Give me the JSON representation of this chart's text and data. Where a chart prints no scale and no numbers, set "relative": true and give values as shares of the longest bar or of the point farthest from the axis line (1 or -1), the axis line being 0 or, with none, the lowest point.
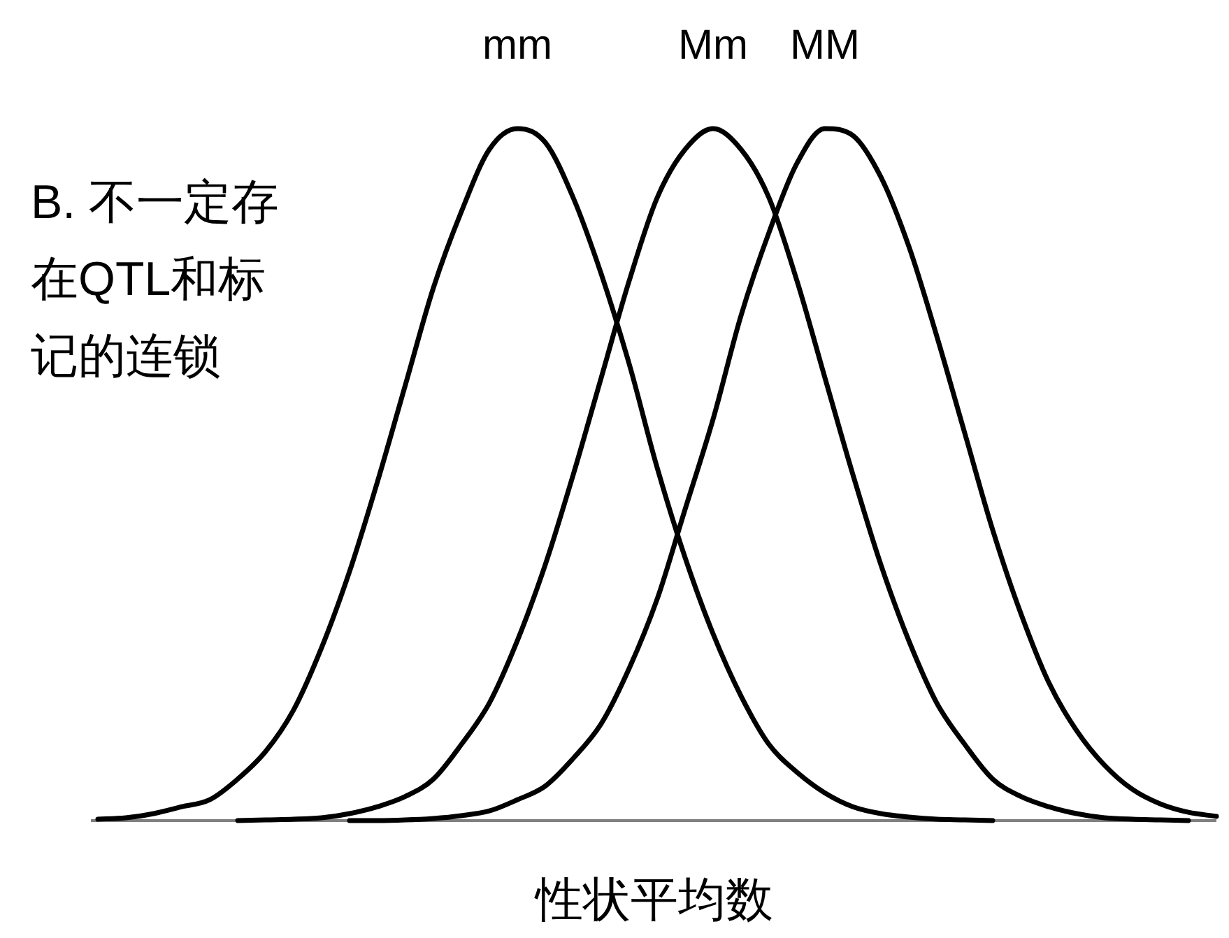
{
  "chart_data": {
    "type": "line",
    "relative": true,
    "xlabel": "性状平均数",
    "annotations": [
      "B. 不一定存在QTL和标记的连锁"
    ],
    "legend": false,
    "marker": "none",
    "line_style": "solid",
    "categories": [
      null,
      null,
      null,
      null,
      null,
      null,
      null,
      null,
      null,
      null,
      null,
      null,
      null,
      null,
      null,
      null,
      null,
      null,
      null,
      null,
      null,
      null,
      null,
      null,
      null,
      null,
      null,
      null,
      null,
      null,
      null,
      null,
      null,
      null,
      null,
      null,
      null,
      null,
      null,
      null,
      null
    ],
    "series": [
      {
        "name": "mm",
        "color": "#000000",
        "values": [
          0.002,
          0.004,
          0.01,
          0.02,
          0.03,
          0.06,
          0.1,
          0.16,
          0.25,
          0.36,
          0.49,
          0.63,
          0.77,
          0.88,
          0.97,
          1.0,
          0.98,
          0.9,
          0.79,
          0.66,
          0.51,
          0.38,
          0.27,
          0.18,
          0.11,
          0.07,
          0.04,
          0.02,
          0.01,
          0.005,
          0.002,
          0.001,
          0,
          null,
          null,
          null,
          null,
          null,
          null,
          null,
          null
        ]
      },
      {
        "name": "Mm",
        "color": "#000000",
        "values": [
          null,
          null,
          null,
          null,
          null,
          0,
          0.001,
          0.002,
          0.004,
          0.01,
          0.02,
          0.035,
          0.06,
          0.11,
          0.17,
          0.26,
          0.37,
          0.5,
          0.64,
          0.78,
          0.9,
          0.97,
          1.0,
          0.97,
          0.9,
          0.78,
          0.64,
          0.5,
          0.37,
          0.26,
          0.17,
          0.11,
          0.06,
          0.035,
          0.02,
          0.01,
          0.004,
          0.002,
          0.001,
          0,
          null
        ]
      },
      {
        "name": "MM",
        "color": "#000000",
        "values": [
          null,
          null,
          null,
          null,
          null,
          null,
          null,
          null,
          null,
          0,
          0,
          0.001,
          0.003,
          0.007,
          0.014,
          0.03,
          0.05,
          0.09,
          0.14,
          0.22,
          0.32,
          0.45,
          0.58,
          0.73,
          0.85,
          0.95,
          1.0,
          0.99,
          0.93,
          0.83,
          0.7,
          0.56,
          0.42,
          0.3,
          0.2,
          0.13,
          0.08,
          0.045,
          0.024,
          0.012,
          0.006
        ]
      }
    ]
  }
}
